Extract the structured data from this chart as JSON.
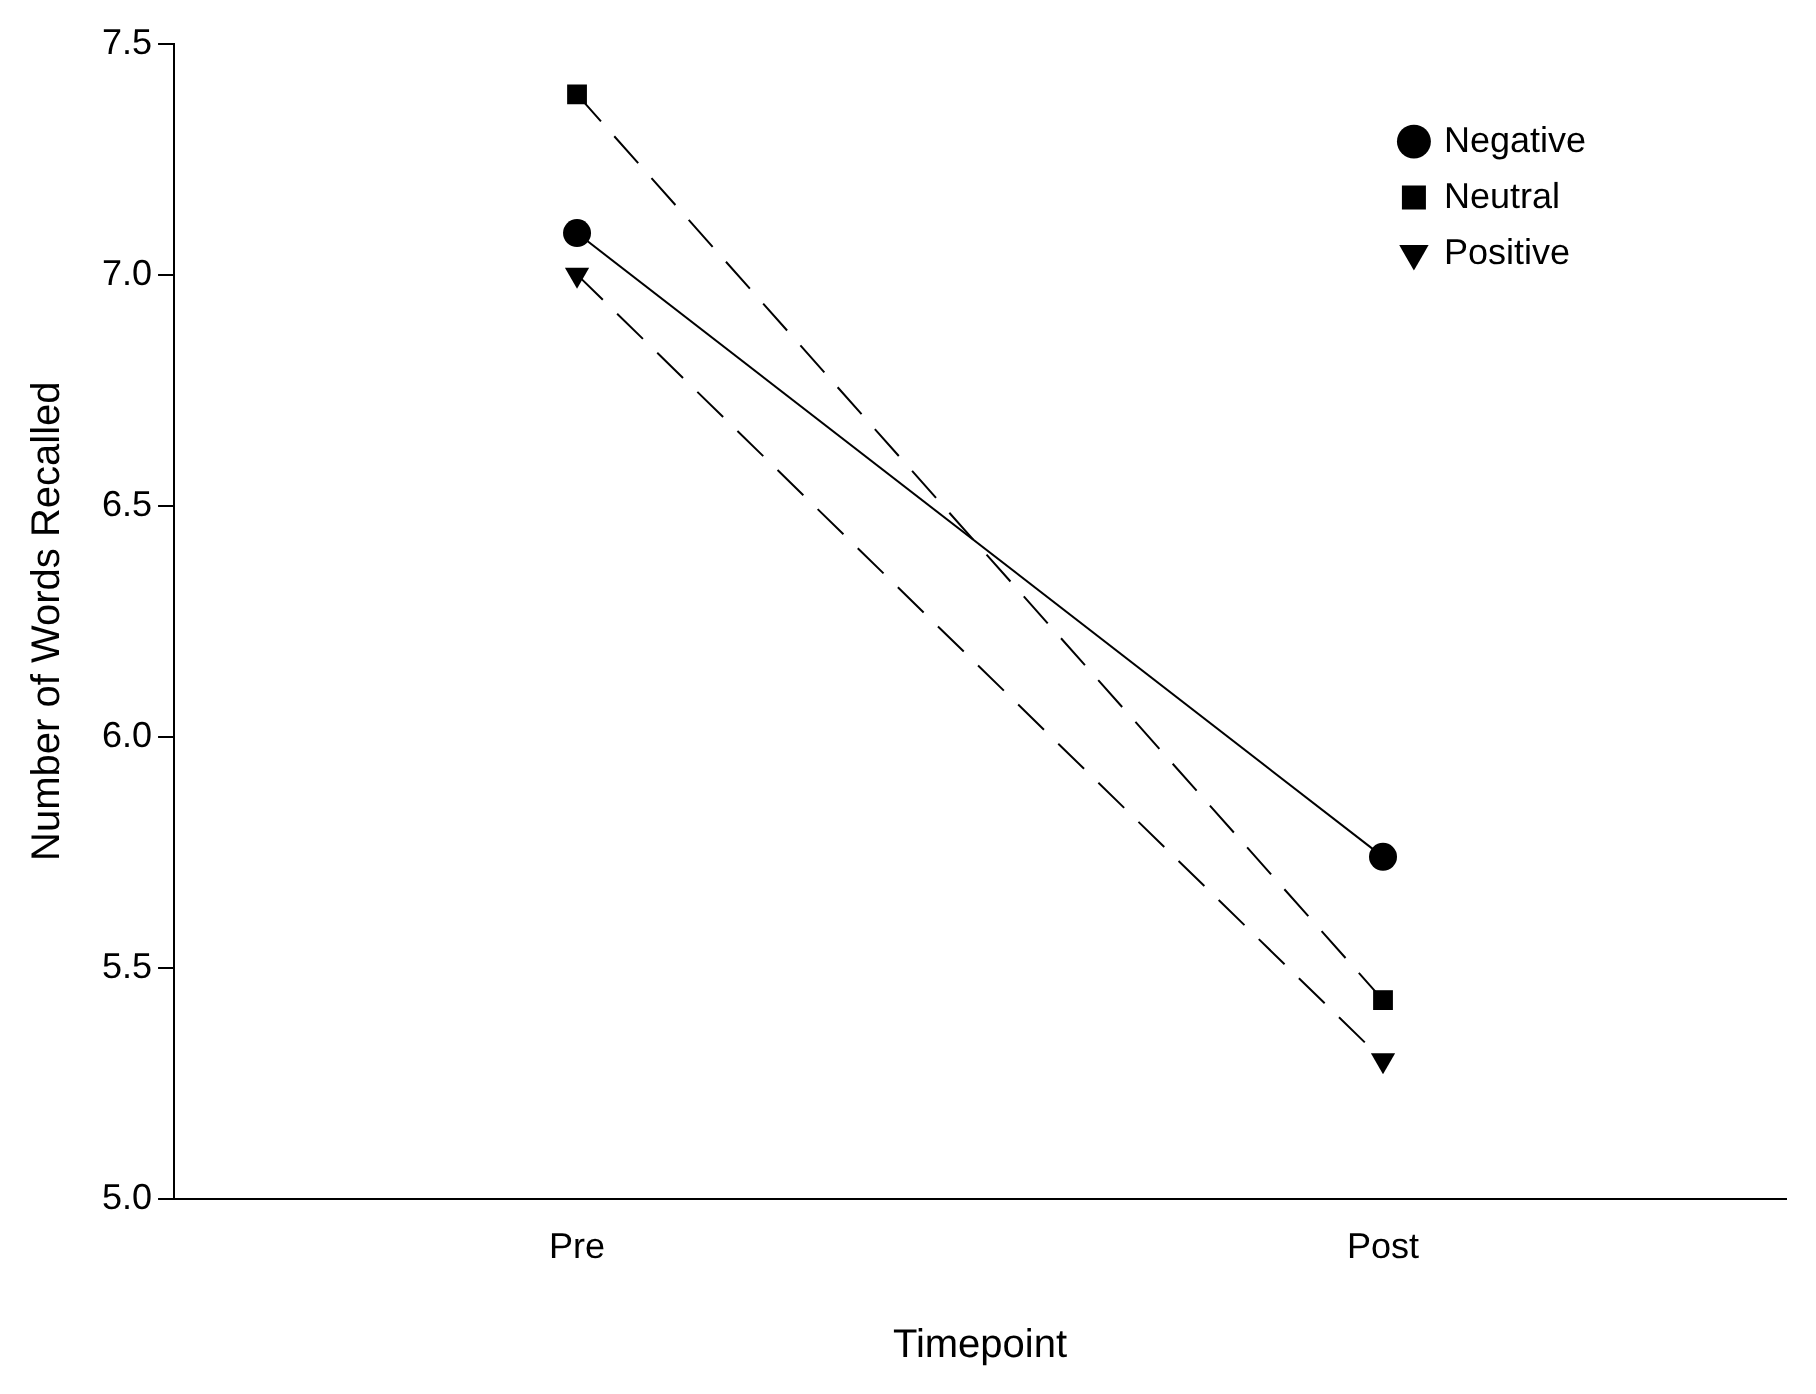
{
  "chart_data": {
    "type": "line",
    "xlabel": "Timepoint",
    "ylabel": "Number of Words Recalled",
    "categories": [
      "Pre",
      "Post"
    ],
    "series": [
      {
        "name": "Negative",
        "color": "#000000",
        "values": [
          7.09,
          5.74
        ],
        "marker": "circle",
        "line_style": "solid"
      },
      {
        "name": "Neutral",
        "color": "#000000",
        "values": [
          7.39,
          5.43
        ],
        "marker": "square",
        "line_style": "dashed"
      },
      {
        "name": "Positive",
        "color": "#000000",
        "values": [
          7.0,
          5.3
        ],
        "marker": "triangle",
        "line_style": "dashed"
      }
    ],
    "ylim": [
      5.0,
      7.5
    ],
    "yticks": [
      {
        "value": 5,
        "label": "5.0"
      },
      {
        "value": 5.5,
        "label": "5.5"
      },
      {
        "value": 6,
        "label": "6.0"
      },
      {
        "value": 6.5,
        "label": "6.5"
      },
      {
        "value": 7,
        "label": "7.0"
      },
      {
        "value": 7.5,
        "label": "7.5"
      }
    ],
    "grid": false,
    "legend": "top right"
  }
}
